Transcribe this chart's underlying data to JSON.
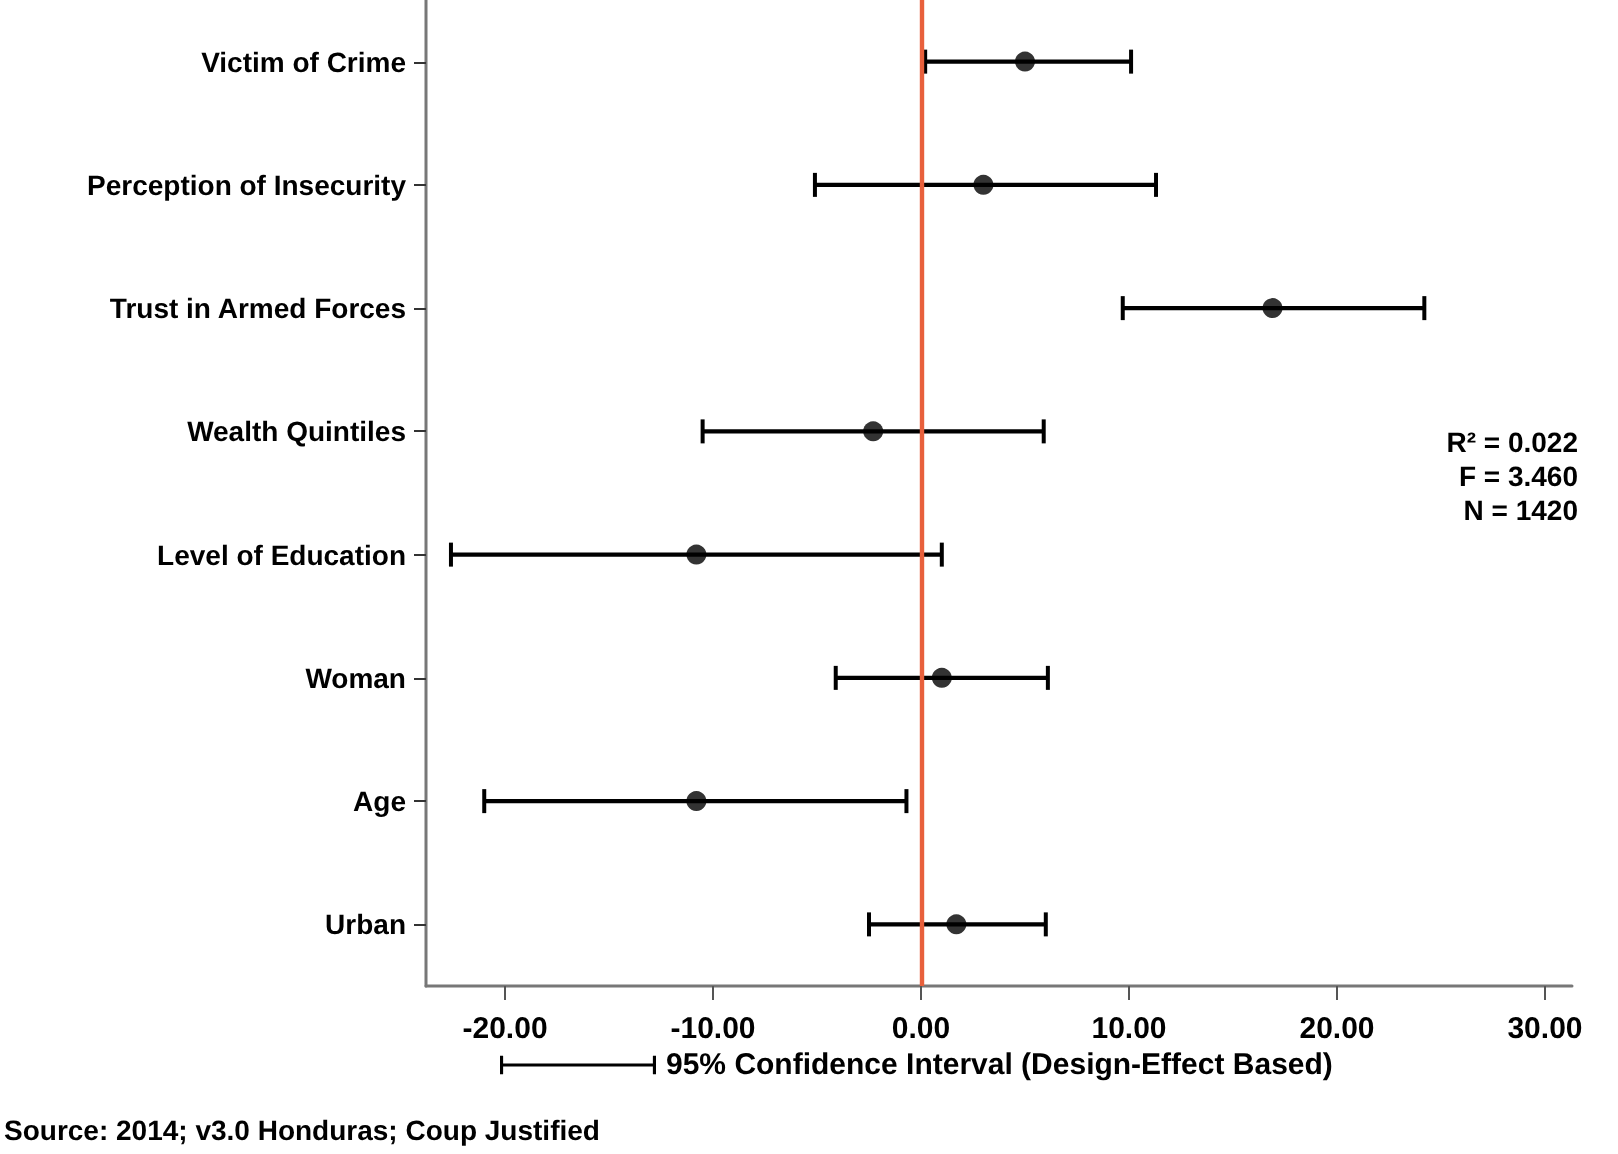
{
  "chart_data": {
    "type": "scatter",
    "orientation": "horizontal",
    "categories": [
      "Victim of Crime",
      "Perception of Insecurity",
      "Trust in Armed Forces",
      "Wealth Quintiles",
      "Level of Education",
      "Woman",
      "Age",
      "Urban"
    ],
    "series": [
      {
        "name": "95% Confidence Interval (Design-Effect Based)",
        "color": "#000000",
        "values": [
          5.0,
          3.0,
          16.9,
          -2.3,
          -10.8,
          1.0,
          -10.8,
          1.7
        ],
        "errors": [
          [
            0.2,
            10.1
          ],
          [
            -5.1,
            11.3
          ],
          [
            9.7,
            24.2
          ],
          [
            -10.5,
            5.9
          ],
          [
            -22.6,
            1.0
          ],
          [
            -4.1,
            6.1
          ],
          [
            -21.0,
            -0.7
          ],
          [
            -2.5,
            6.0
          ]
        ]
      }
    ],
    "xlim": [
      -23.8,
      31.3
    ],
    "xticks": [
      {
        "value": -20,
        "label": "-20.00"
      },
      {
        "value": -10,
        "label": "-10.00"
      },
      {
        "value": 0,
        "label": "0.00"
      },
      {
        "value": 10,
        "label": "10.00"
      },
      {
        "value": 20,
        "label": "20.00"
      },
      {
        "value": 30,
        "label": "30.00"
      }
    ],
    "ref_lines": [
      {
        "axis": "x",
        "value": 0,
        "label": null,
        "color": "#e8603c"
      }
    ],
    "marker": "circle",
    "grid": false,
    "legend": "bottom",
    "annotations": [
      "R² = 0.022",
      "F = 3.460",
      "N = 1420",
      "Source: 2014; v3.0 Honduras; Coup Justified"
    ]
  }
}
